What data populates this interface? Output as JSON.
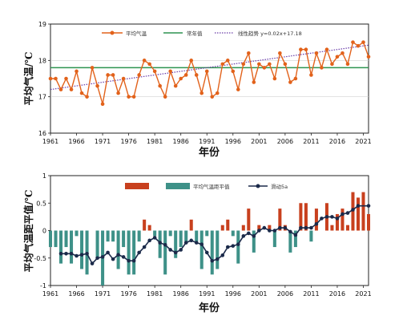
{
  "colors": {
    "temp_line": "#E2621B",
    "normal_line": "#2E9450",
    "trend_line": "#6A3DA8",
    "anom_pos": "#C8401E",
    "anom_neg": "#3E9188",
    "moving_avg": "#1B2A4A"
  },
  "chart_data": [
    {
      "type": "line",
      "xlabel": "年份",
      "ylabel": "平均气温/℃",
      "xlim": [
        1961,
        2022
      ],
      "ylim": [
        16,
        19
      ],
      "yticks": [
        "16",
        "17",
        "18",
        "19"
      ],
      "xticks": [
        "1961",
        "1966",
        "1971",
        "1976",
        "1981",
        "1986",
        "1991",
        "1996",
        "2001",
        "2006",
        "2011",
        "2016",
        "2021"
      ],
      "legend_position": "top",
      "series": [
        {
          "name": "平均气温",
          "x": [
            1961,
            1962,
            1963,
            1964,
            1965,
            1966,
            1967,
            1968,
            1969,
            1970,
            1971,
            1972,
            1973,
            1974,
            1975,
            1976,
            1977,
            1978,
            1979,
            1980,
            1981,
            1982,
            1983,
            1984,
            1985,
            1986,
            1987,
            1988,
            1989,
            1990,
            1991,
            1992,
            1993,
            1994,
            1995,
            1996,
            1997,
            1998,
            1999,
            2000,
            2001,
            2002,
            2003,
            2004,
            2005,
            2006,
            2007,
            2008,
            2009,
            2010,
            2011,
            2012,
            2013,
            2014,
            2015,
            2016,
            2017,
            2018,
            2019,
            2020,
            2021,
            2022
          ],
          "values": [
            17.5,
            17.5,
            17.2,
            17.5,
            17.2,
            17.7,
            17.1,
            17.0,
            17.8,
            17.3,
            16.8,
            17.6,
            17.6,
            17.1,
            17.5,
            17.0,
            17.0,
            17.6,
            18.0,
            17.9,
            17.7,
            17.3,
            17.0,
            17.7,
            17.3,
            17.5,
            17.6,
            18.0,
            17.6,
            17.1,
            17.7,
            17.0,
            17.1,
            17.9,
            18.0,
            17.7,
            17.2,
            17.9,
            18.2,
            17.4,
            17.9,
            17.8,
            17.9,
            17.5,
            18.2,
            17.9,
            17.4,
            17.5,
            18.3,
            18.3,
            17.6,
            18.2,
            17.8,
            18.3,
            17.9,
            18.1,
            18.2,
            17.9,
            18.5,
            18.4,
            18.5,
            18.1
          ]
        },
        {
          "name": "常年值",
          "value": 17.8
        },
        {
          "name": "线性趋势 y=0.02x+17.18",
          "slope": 0.02,
          "intercept": 17.18
        }
      ]
    },
    {
      "type": "bar",
      "xlabel": "年份",
      "ylabel": "平均气温距平值/℃",
      "xlim": [
        1961,
        2022
      ],
      "ylim": [
        -1,
        1
      ],
      "yticks": [
        "-1",
        "-0.5",
        "0",
        "0.5",
        "1"
      ],
      "xticks": [
        "1961",
        "1966",
        "1971",
        "1976",
        "1981",
        "1986",
        "1991",
        "1996",
        "2001",
        "2006",
        "2011",
        "2016",
        "2021"
      ],
      "legend_position": "top",
      "series": [
        {
          "name": "平均气温距平值",
          "x": [
            1961,
            1962,
            1963,
            1964,
            1965,
            1966,
            1967,
            1968,
            1969,
            1970,
            1971,
            1972,
            1973,
            1974,
            1975,
            1976,
            1977,
            1978,
            1979,
            1980,
            1981,
            1982,
            1983,
            1984,
            1985,
            1986,
            1987,
            1988,
            1989,
            1990,
            1991,
            1992,
            1993,
            1994,
            1995,
            1996,
            1997,
            1998,
            1999,
            2000,
            2001,
            2002,
            2003,
            2004,
            2005,
            2006,
            2007,
            2008,
            2009,
            2010,
            2011,
            2012,
            2013,
            2014,
            2015,
            2016,
            2017,
            2018,
            2019,
            2020,
            2021,
            2022
          ],
          "values": [
            -0.3,
            -0.3,
            -0.6,
            -0.3,
            -0.6,
            -0.1,
            -0.7,
            -0.8,
            0.0,
            -0.5,
            -1.0,
            -0.2,
            -0.2,
            -0.7,
            -0.3,
            -0.8,
            -0.8,
            -0.2,
            0.2,
            0.1,
            -0.1,
            -0.5,
            -0.8,
            -0.1,
            -0.5,
            -0.3,
            -0.2,
            0.2,
            -0.2,
            -0.7,
            -0.1,
            -0.8,
            -0.7,
            0.1,
            0.2,
            -0.1,
            -0.6,
            0.1,
            0.4,
            -0.4,
            0.1,
            0.0,
            0.1,
            -0.3,
            0.4,
            0.1,
            -0.4,
            -0.3,
            0.5,
            0.5,
            -0.2,
            0.4,
            0.0,
            0.5,
            0.1,
            0.3,
            0.4,
            0.1,
            0.7,
            0.6,
            0.7,
            0.3
          ]
        },
        {
          "name": "滑动5a",
          "x": [
            1963,
            1964,
            1965,
            1966,
            1967,
            1968,
            1969,
            1970,
            1971,
            1972,
            1973,
            1974,
            1975,
            1976,
            1977,
            1978,
            1979,
            1980,
            1981,
            1982,
            1983,
            1984,
            1985,
            1986,
            1987,
            1988,
            1989,
            1990,
            1991,
            1992,
            1993,
            1994,
            1995,
            1996,
            1997,
            1998,
            1999,
            2000,
            2001,
            2002,
            2003,
            2004,
            2005,
            2006,
            2007,
            2008,
            2009,
            2010,
            2011,
            2012,
            2013,
            2014,
            2015,
            2016,
            2017,
            2018,
            2019,
            2020
          ],
          "values": [
            -0.42,
            -0.42,
            -0.42,
            -0.46,
            -0.44,
            -0.42,
            -0.6,
            -0.5,
            -0.48,
            -0.4,
            -0.52,
            -0.44,
            -0.48,
            -0.55,
            -0.55,
            -0.4,
            -0.3,
            -0.18,
            -0.13,
            -0.22,
            -0.26,
            -0.35,
            -0.4,
            -0.35,
            -0.22,
            -0.18,
            -0.22,
            -0.25,
            -0.4,
            -0.55,
            -0.52,
            -0.45,
            -0.3,
            -0.28,
            -0.25,
            -0.1,
            -0.05,
            -0.1,
            0.0,
            0.05,
            0.0,
            0.0,
            0.05,
            0.05,
            -0.02,
            -0.08,
            0.05,
            0.05,
            0.05,
            0.12,
            0.22,
            0.25,
            0.25,
            0.22,
            0.3,
            0.32,
            0.38,
            0.45
          ]
        }
      ],
      "extra_point": {
        "x": 2022,
        "value": 0.45
      }
    }
  ]
}
